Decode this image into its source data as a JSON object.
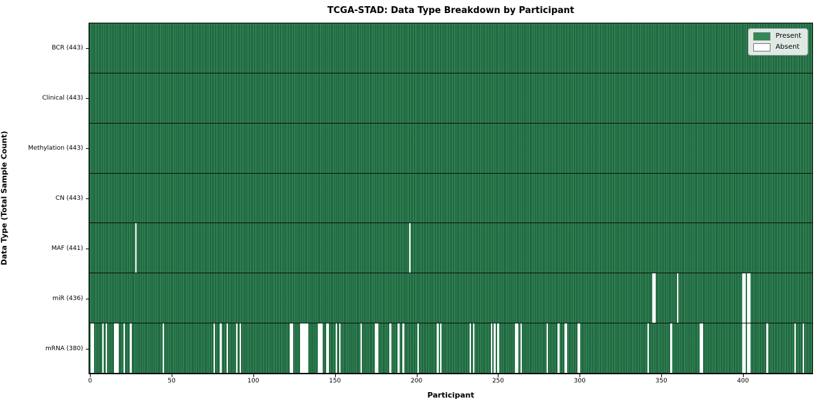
{
  "title": "TCGA-STAD: Data Type Breakdown by Participant",
  "chart_data": {
    "type": "heatmap",
    "title": "TCGA-STAD: Data Type Breakdown by Participant",
    "xlabel": "Participant",
    "ylabel": "Data Type (Total Sample Count)",
    "n_participants": 443,
    "x_range": [
      0,
      443
    ],
    "x_ticks": [
      0,
      50,
      100,
      150,
      200,
      250,
      300,
      350,
      400
    ],
    "grid": false,
    "cell_states": [
      "Present",
      "Absent"
    ],
    "colors": {
      "present": "#2e8b57",
      "absent": "#ffffff",
      "cell_edge": "#10311f",
      "row_divider": "#0e0e0e",
      "plot_border": "#000000"
    },
    "legend": {
      "position": "upper right",
      "entries": [
        {
          "label": "Present",
          "color": "#2e8b57"
        },
        {
          "label": "Absent",
          "color": "#ffffff"
        }
      ]
    },
    "rows": [
      {
        "data_type": "BCR",
        "label": "BCR (443)",
        "present_count": 443,
        "absent_participants": []
      },
      {
        "data_type": "Clinical",
        "label": "Clinical (443)",
        "present_count": 443,
        "absent_participants": []
      },
      {
        "data_type": "Methylation",
        "label": "Methylation (443)",
        "present_count": 443,
        "absent_participants": []
      },
      {
        "data_type": "CN",
        "label": "CN (443)",
        "present_count": 443,
        "absent_participants": []
      },
      {
        "data_type": "MAF",
        "label": "MAF (441)",
        "present_count": 441,
        "absent_participants": [
          28,
          196
        ]
      },
      {
        "data_type": "miR",
        "label": "miR (436)",
        "present_count": 436,
        "absent_participants": [
          345,
          346,
          360,
          400,
          401,
          403,
          404
        ]
      },
      {
        "data_type": "mRNA",
        "label": "mRNA (380)",
        "present_count": 380,
        "absent_participants": [
          1,
          2,
          8,
          10,
          15,
          16,
          17,
          21,
          25,
          45,
          76,
          80,
          84,
          90,
          92,
          123,
          124,
          129,
          130,
          131,
          132,
          133,
          140,
          141,
          142,
          145,
          146,
          151,
          153,
          166,
          175,
          176,
          184,
          189,
          192,
          201,
          213,
          215,
          233,
          235,
          246,
          248,
          250,
          261,
          262,
          264,
          280,
          287,
          291,
          292,
          299,
          300,
          342,
          356,
          374,
          375,
          400,
          401,
          403,
          404,
          415,
          432,
          437
        ]
      }
    ]
  }
}
